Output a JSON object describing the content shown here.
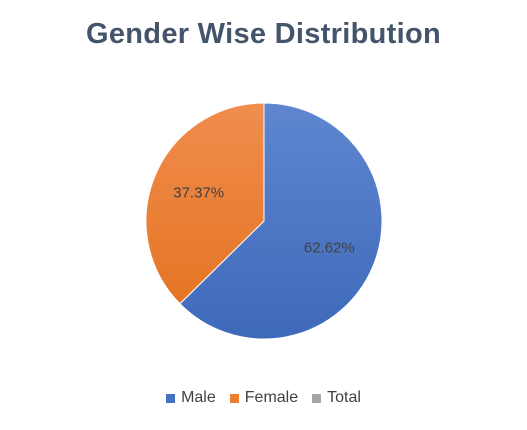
{
  "chart_data": {
    "type": "pie",
    "title": "Gender Wise Distribution",
    "categories": [
      "Male",
      "Female",
      "Total"
    ],
    "values": [
      62.62,
      37.37,
      0
    ],
    "value_labels": [
      "62.62%",
      "37.37%",
      ""
    ],
    "colors": [
      "#4472c4",
      "#ed7d31",
      "#a5a5a5"
    ],
    "legend_position": "bottom",
    "legend": [
      {
        "label": "Male",
        "color": "#4472c4"
      },
      {
        "label": "Female",
        "color": "#ed7d31"
      },
      {
        "label": "Total",
        "color": "#a5a5a5"
      }
    ]
  }
}
